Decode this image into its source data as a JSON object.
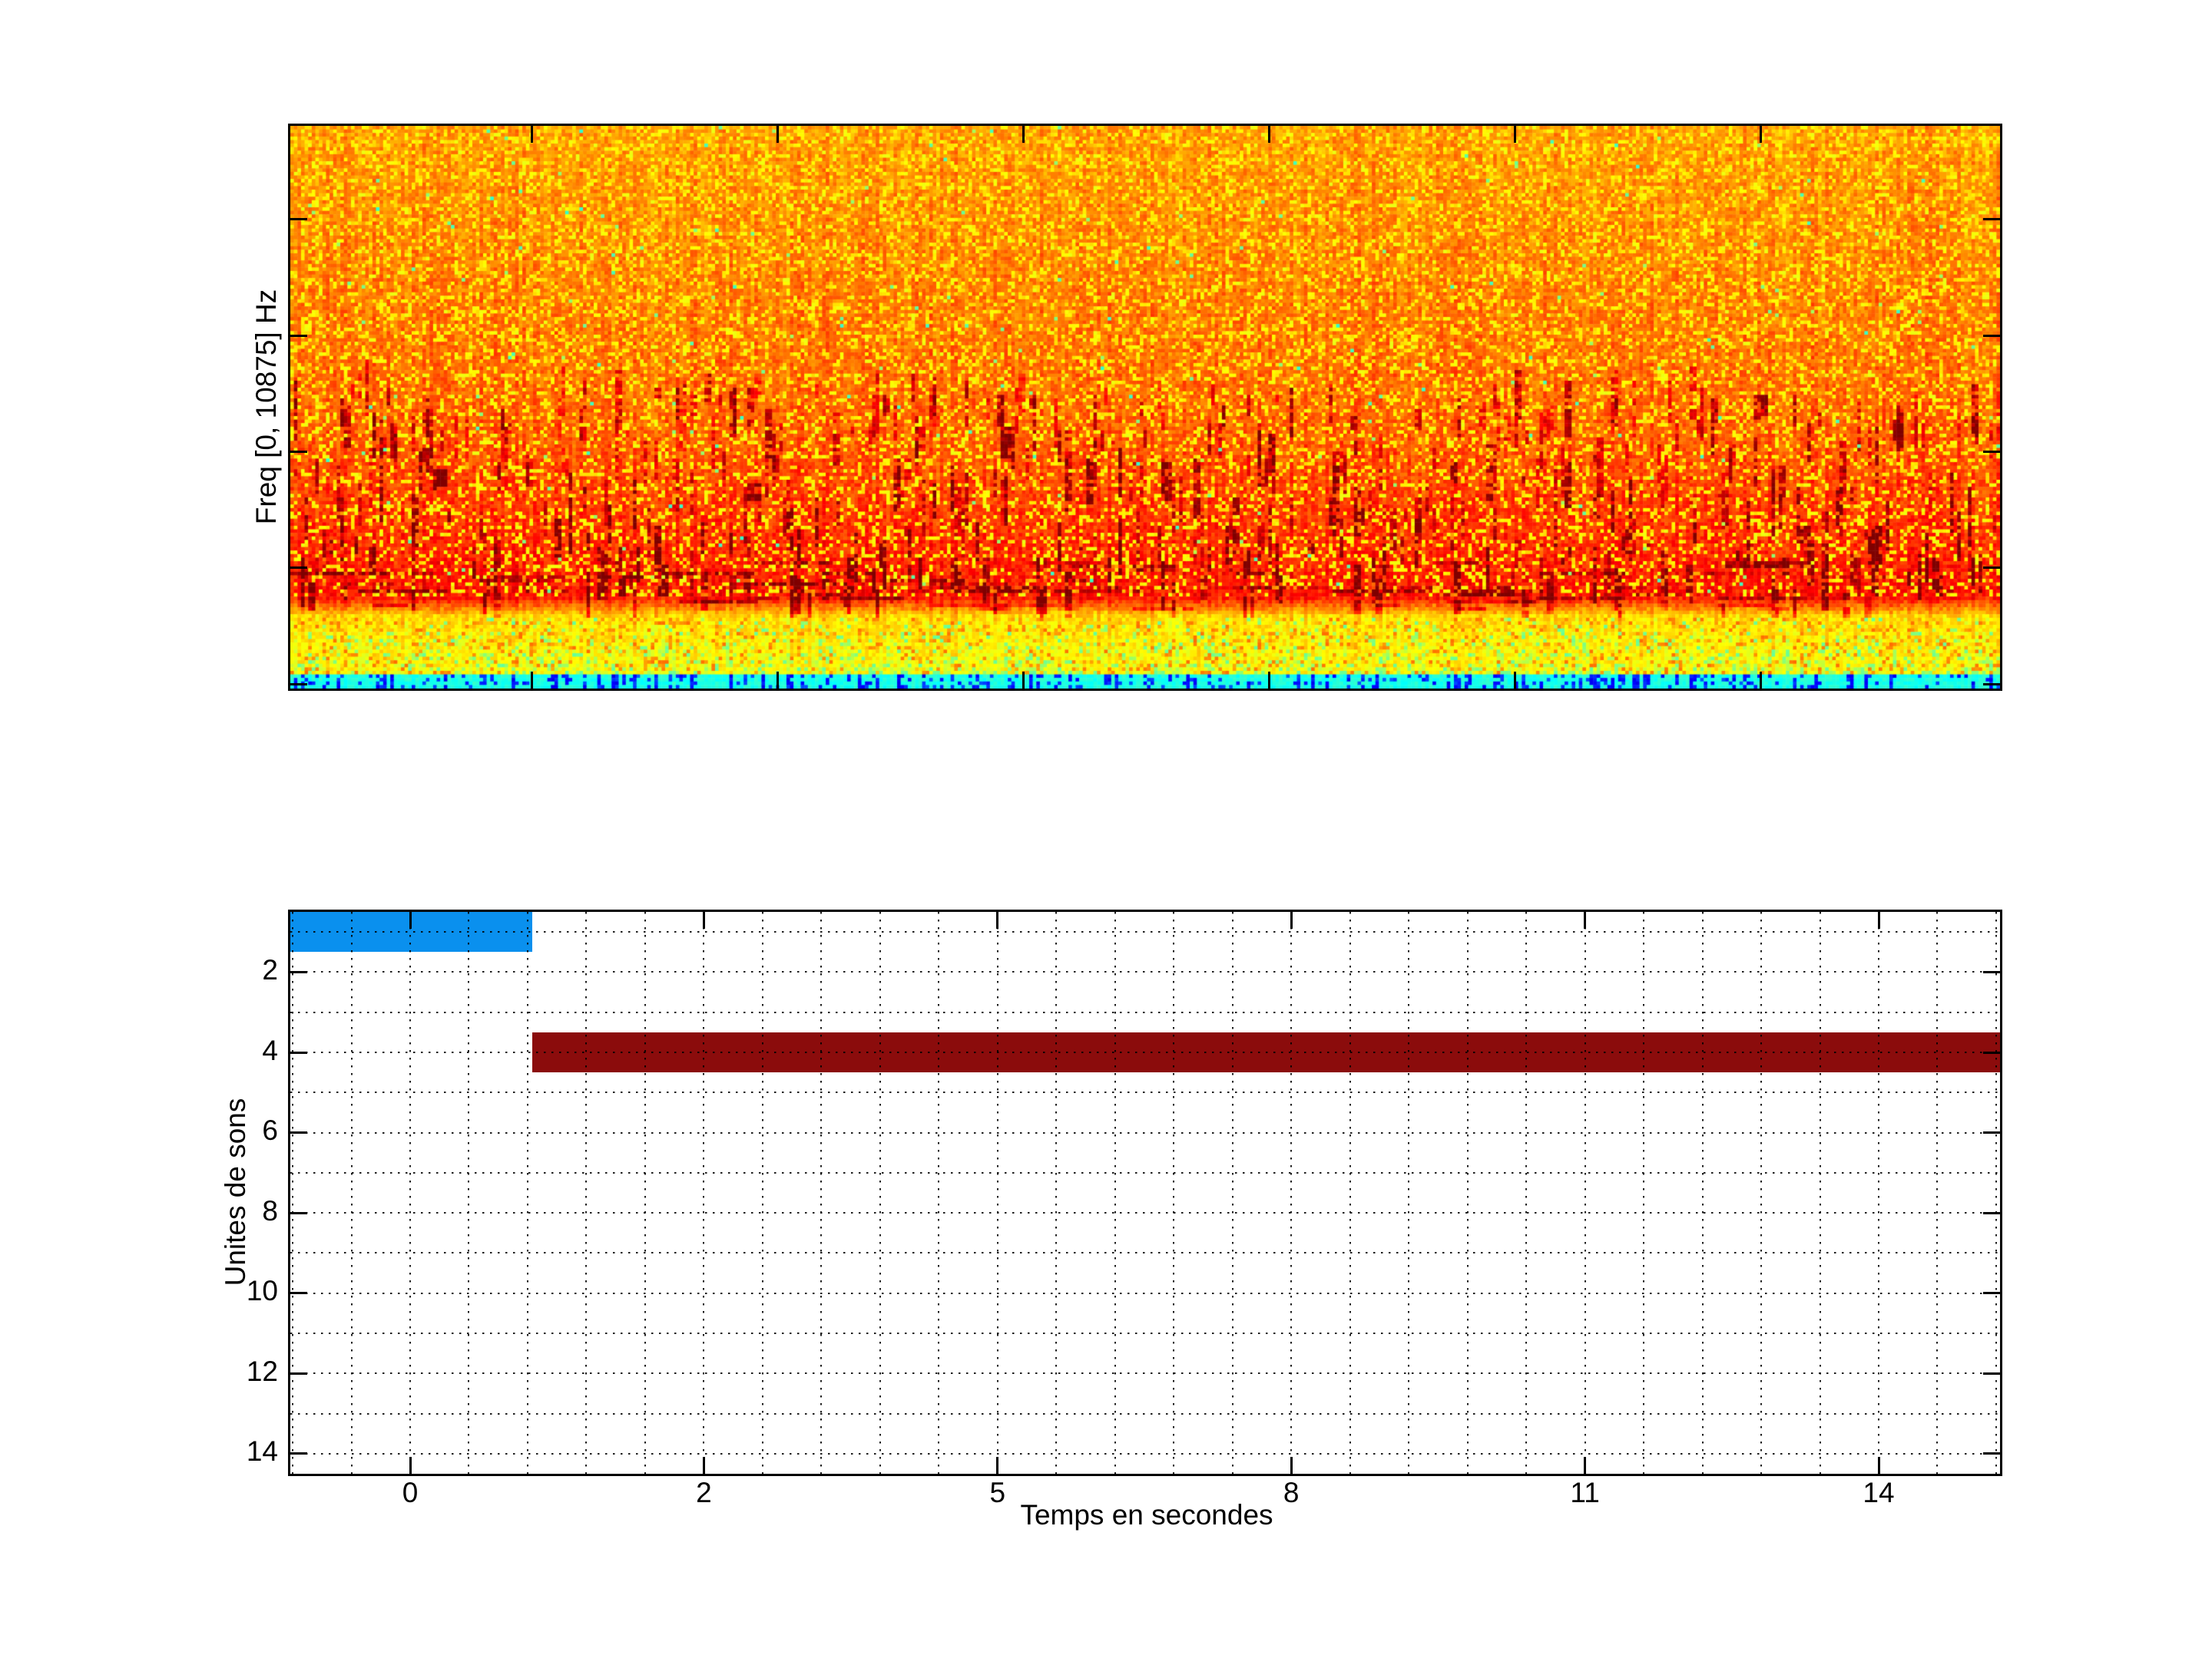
{
  "figure": {
    "background": "#ffffff",
    "axis_color": "#000000",
    "font_color": "#000000"
  },
  "chart_data": [
    {
      "type": "heatmap",
      "name": "spectrogram",
      "title": "",
      "xlabel": "",
      "ylabel": "Freq [0, 10875] Hz",
      "colormap": "jet",
      "x_ticks": {
        "count": 6,
        "labels": []
      },
      "y_ticks": {
        "count": 5,
        "labels": []
      },
      "content_description": "Dense orange-red spectral noise with yellow speckles; darker red vertical streaks concentrated in the lower-middle band; bright yellow band near the bottom with green speckles; thin cyan strip with dark-blue vertical dashes along the bottom edge",
      "intensity_zones": [
        {
          "band_fraction": [
            0.0,
            0.5
          ],
          "jet_value": 0.73,
          "note": "orange noise with yellow speckles"
        },
        {
          "band_fraction": [
            0.5,
            0.84
          ],
          "jet_value": 0.82,
          "note": "red-orange with dark red streaks"
        },
        {
          "band_fraction": [
            0.875,
            0.975
          ],
          "jet_value": 0.64,
          "note": "yellow band with green speckles"
        },
        {
          "band_fraction": [
            0.975,
            1.0
          ],
          "jet_value": 0.41,
          "note": "cyan strip with blue dashes"
        }
      ]
    },
    {
      "type": "bar",
      "name": "units-timeline",
      "orientation": "horizontal",
      "xlabel": "Temps en secondes",
      "ylabel": "Unites de sons",
      "x_tick_labels": [
        "0",
        "2",
        "5",
        "8",
        "11",
        "14"
      ],
      "y_tick_labels": [
        "2",
        "4",
        "6",
        "8",
        "10",
        "12",
        "14"
      ],
      "y_range": [
        0.5,
        14.5
      ],
      "grid": "dotted",
      "bars": [
        {
          "unit": 1,
          "start_s": -0.83,
          "end_s": 0.83,
          "color": "#0a90ee"
        },
        {
          "unit": 4,
          "start_s": 0.83,
          "end_s": 15.26,
          "color": "#8b0c0c"
        }
      ]
    }
  ]
}
